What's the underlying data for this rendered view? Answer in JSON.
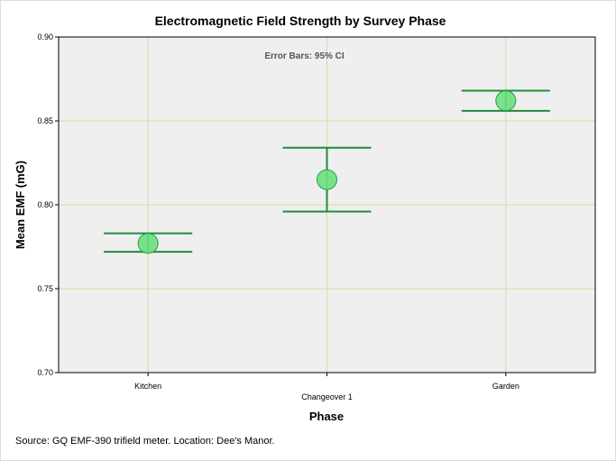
{
  "chart_data": {
    "type": "errorbar",
    "title": "Electromagnetic Field Strength by Survey Phase",
    "xlabel": "Phase",
    "ylabel": "Mean EMF (mG)",
    "annotation": "Error Bars: 95% CI",
    "categories": [
      "Kitchen",
      "Changeover 1",
      "Garden"
    ],
    "means": [
      0.777,
      0.815,
      0.862
    ],
    "ci_lower": [
      0.772,
      0.796,
      0.856
    ],
    "ci_upper": [
      0.783,
      0.834,
      0.868
    ],
    "ylim": [
      0.7,
      0.9
    ],
    "yticks": [
      "0.70",
      "0.75",
      "0.80",
      "0.85",
      "0.90"
    ],
    "ytick_values": [
      0.7,
      0.75,
      0.8,
      0.85,
      0.9
    ],
    "grid": true,
    "colors": {
      "plot_bg": "#efefef",
      "grid": "#d6dca8",
      "marker_fill": "#6ddf7f",
      "marker_stroke": "#2c9a45",
      "errorbar": "#1f8c3a"
    }
  },
  "footnote": "Source: GQ EMF-390 trifield meter. Location: Dee's Manor."
}
